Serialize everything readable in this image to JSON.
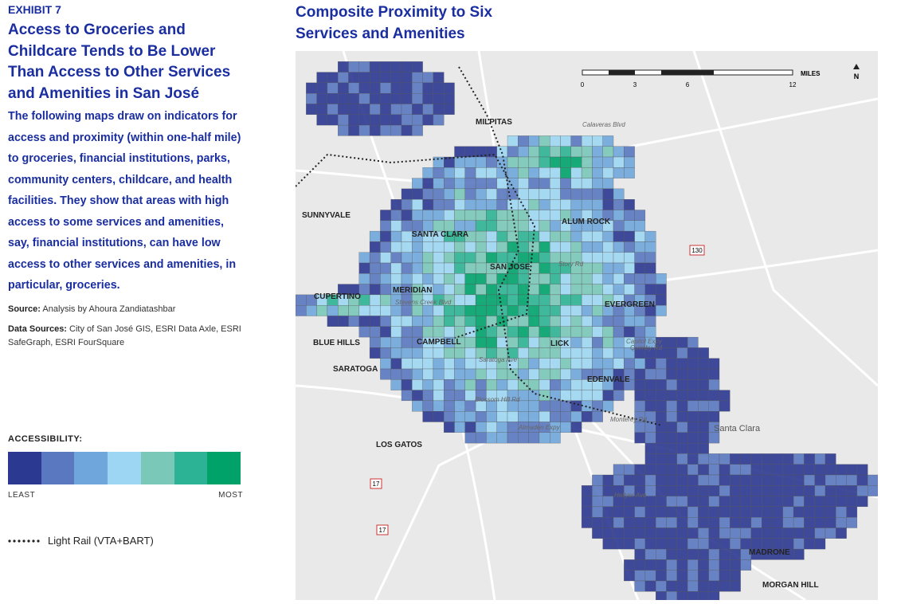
{
  "exhibit": "EXHIBIT 7",
  "title": "Access to Groceries and Childcare Tends to Be Lower Than Access to Other Services and Amenities in San José",
  "description": "The following maps draw on indicators for access and proximity (within one-half mile) to groceries, financial institutions, parks, community centers, childcare, and health facilities. They show that areas with high access to some services and amenities, say, financial institutions, can have low access to other services and amenities, in particular, groceries.",
  "source": {
    "label": "Source:",
    "text": "Analysis by Ahoura Zandiatashbar"
  },
  "data_sources": {
    "label": "Data Sources:",
    "text": "City of San José GIS, ESRI Data Axle, ESRI SafeGraph, ESRI FourSquare"
  },
  "legend": {
    "title": "ACCESSIBILITY:",
    "low": "LEAST",
    "high": "MOST",
    "colors": [
      "#2b3990",
      "#5a78bf",
      "#6fa6db",
      "#9dd6f2",
      "#79c8b8",
      "#2cb294",
      "#00a26a"
    ],
    "rail": "Light Rail (VTA+BART)"
  },
  "map": {
    "title": "Composite Proximity to Six Services and Amenities",
    "scale": {
      "ticks": [
        "0",
        "3",
        "6",
        "12"
      ],
      "unit": "MILES"
    },
    "north": "N",
    "places": [
      "MILPITAS",
      "SUNNYVALE",
      "SANTA CLARA",
      "SAN JOSE",
      "ALUM ROCK",
      "CUPERTINO",
      "MERIDIAN",
      "EVERGREEN",
      "BLUE HILLS",
      "CAMPBELL",
      "LICK",
      "SARATOGA",
      "EDENVALE",
      "LOS GATOS",
      "MADRONE",
      "MORGAN HILL",
      "Santa Clara"
    ],
    "shields": [
      "130",
      "17",
      "17"
    ],
    "roads": [
      "Calaveras Blvd",
      "Capitol Expy",
      "Stevens Creek Blvd",
      "Almaden Expy",
      "Blossom Hill Rd",
      "Monterey Rd",
      "Quimby Rd",
      "Saratoga Ave",
      "Story Rd",
      "Hellyer Ave"
    ]
  }
}
